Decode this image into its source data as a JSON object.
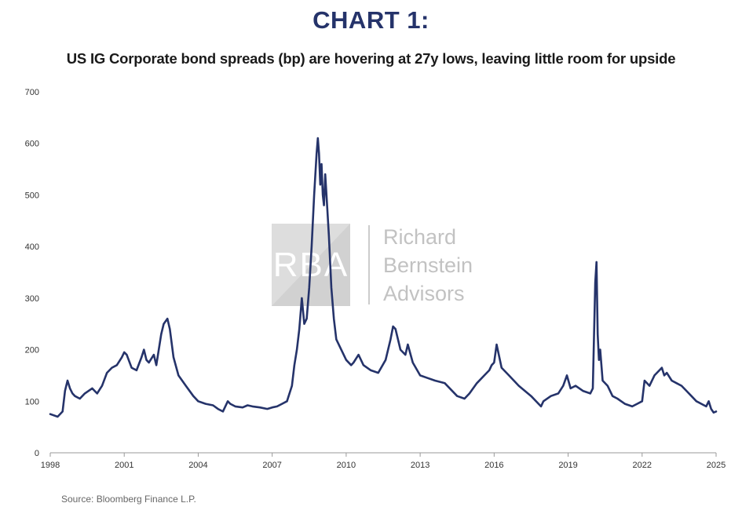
{
  "header": {
    "chart_number": "CHART 1:",
    "title": "US IG Corporate bond spreads (bp) are hovering at 27y lows, leaving little room for upside"
  },
  "source": "Source: Bloomberg Finance L.P.",
  "watermark": {
    "monogram": "RBA",
    "lines": [
      "Richard",
      "Bernstein",
      "Advisors"
    ]
  },
  "colors": {
    "line": "#25336a",
    "heading": "#25336a",
    "axis": "#999999"
  },
  "chart_data": {
    "type": "line",
    "title": "US IG Corporate bond spreads (bp) are hovering at 27y lows, leaving little room for upside",
    "xlabel": "",
    "ylabel": "",
    "xlim": [
      1998,
      2025
    ],
    "ylim": [
      0,
      700
    ],
    "x_ticks": [
      1998,
      2001,
      2004,
      2007,
      2010,
      2013,
      2016,
      2019,
      2022,
      2025
    ],
    "y_ticks": [
      0,
      100,
      200,
      300,
      400,
      500,
      600,
      700
    ],
    "grid": false,
    "legend": "none",
    "series": [
      {
        "x": [
          1998.0,
          1998.3,
          1998.5,
          1998.6,
          1998.7,
          1998.8,
          1998.9,
          1999.0,
          1999.2,
          1999.4,
          1999.7,
          1999.9,
          2000.1,
          2000.3,
          2000.5,
          2000.7,
          2000.9,
          2001.0,
          2001.1,
          2001.3,
          2001.5,
          2001.7,
          2001.8,
          2001.9,
          2002.0,
          2002.2,
          2002.3,
          2002.5,
          2002.6,
          2002.75,
          2002.85,
          2003.0,
          2003.2,
          2003.5,
          2003.8,
          2004.0,
          2004.3,
          2004.6,
          2004.8,
          2005.0,
          2005.2,
          2005.3,
          2005.5,
          2005.8,
          2006.0,
          2006.2,
          2006.5,
          2006.8,
          2007.0,
          2007.2,
          2007.4,
          2007.6,
          2007.8,
          2007.9,
          2008.0,
          2008.1,
          2008.2,
          2008.3,
          2008.4,
          2008.5,
          2008.6,
          2008.7,
          2008.8,
          2008.85,
          2008.9,
          2008.95,
          2009.0,
          2009.05,
          2009.1,
          2009.15,
          2009.2,
          2009.3,
          2009.4,
          2009.5,
          2009.6,
          2009.8,
          2010.0,
          2010.2,
          2010.3,
          2010.5,
          2010.7,
          2011.0,
          2011.3,
          2011.6,
          2011.8,
          2011.9,
          2012.0,
          2012.2,
          2012.4,
          2012.5,
          2012.7,
          2013.0,
          2013.3,
          2013.6,
          2014.0,
          2014.5,
          2014.8,
          2015.0,
          2015.3,
          2015.6,
          2015.8,
          2015.9,
          2016.0,
          2016.1,
          2016.3,
          2016.6,
          2017.0,
          2017.5,
          2017.9,
          2018.0,
          2018.3,
          2018.6,
          2018.8,
          2018.95,
          2019.1,
          2019.3,
          2019.6,
          2019.9,
          2020.0,
          2020.1,
          2020.15,
          2020.2,
          2020.25,
          2020.3,
          2020.4,
          2020.6,
          2020.8,
          2021.0,
          2021.3,
          2021.6,
          2021.8,
          2022.0,
          2022.1,
          2022.3,
          2022.5,
          2022.7,
          2022.8,
          2022.9,
          2023.0,
          2023.2,
          2023.4,
          2023.6,
          2023.8,
          2024.0,
          2024.2,
          2024.4,
          2024.6,
          2024.7,
          2024.8,
          2024.9,
          2025.0
        ],
        "y": [
          75,
          70,
          80,
          120,
          140,
          125,
          115,
          110,
          105,
          115,
          125,
          115,
          130,
          155,
          165,
          170,
          185,
          195,
          190,
          165,
          160,
          185,
          200,
          180,
          175,
          190,
          170,
          230,
          250,
          260,
          240,
          185,
          150,
          130,
          110,
          100,
          95,
          92,
          85,
          80,
          100,
          95,
          90,
          88,
          92,
          90,
          88,
          85,
          88,
          90,
          95,
          100,
          130,
          170,
          200,
          240,
          300,
          250,
          260,
          320,
          400,
          500,
          580,
          610,
          580,
          520,
          560,
          500,
          480,
          540,
          500,
          420,
          320,
          260,
          220,
          200,
          180,
          170,
          175,
          190,
          170,
          160,
          155,
          180,
          220,
          245,
          240,
          200,
          190,
          210,
          175,
          150,
          145,
          140,
          135,
          110,
          105,
          115,
          135,
          150,
          160,
          170,
          175,
          210,
          165,
          150,
          130,
          110,
          90,
          100,
          110,
          115,
          130,
          150,
          125,
          130,
          120,
          115,
          125,
          330,
          370,
          230,
          180,
          200,
          140,
          130,
          110,
          105,
          95,
          90,
          95,
          100,
          140,
          130,
          150,
          160,
          165,
          150,
          155,
          140,
          135,
          130,
          120,
          110,
          100,
          95,
          90,
          100,
          85,
          78,
          80
        ]
      }
    ]
  }
}
